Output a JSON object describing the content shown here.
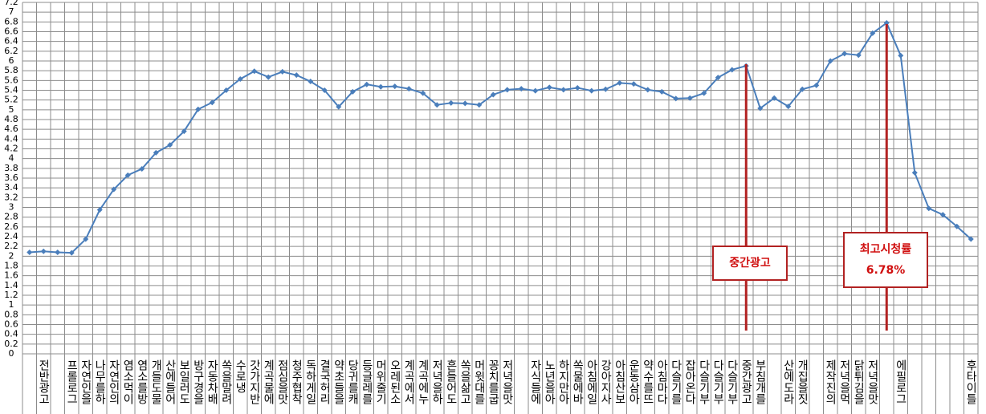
{
  "chart_data": {
    "type": "line",
    "categories": [
      null,
      "전반광고",
      null,
      "프롤로그",
      "자연인을",
      "나무를하",
      "자연인의",
      "염소먹이",
      "염소를방",
      "개들도물",
      "산에들어",
      "보일러도",
      "방구경을",
      "자동차배",
      "쏙을말려",
      "수로냉",
      "갓가지반",
      "계곡물에",
      "점심을맛",
      "청주협착",
      "독하게일",
      "결국허리",
      "약초들을",
      "당귀를캐",
      "등글레를",
      "머위줄기",
      "오레된소",
      "계곡에서",
      "계곡에누",
      "저녁을하",
      "흔들어도",
      "쏙을삶고",
      "머윗대를",
      "꽁치를굽",
      "저녁을맛",
      null,
      "자식들에",
      "노년을아",
      "하지만아",
      "쏙물에바",
      "아침에일",
      "강아지사",
      "아침산보",
      "운동삼아",
      "약수를뜨",
      "아침마다",
      "다슬기를",
      "잡아온다",
      "다슬기부",
      "다슬기부",
      "다슬기부",
      "중간광고",
      "부침개를",
      null,
      "산에도라",
      "개집을짓",
      null,
      "제작진의",
      "저녁을먹",
      "닭튀김을",
      "저녁을맛",
      null,
      "에필로그",
      null,
      null,
      null,
      null,
      "후타이틀"
    ],
    "series": [
      {
        "color": "#4a7ebb",
        "values": [
          2.08,
          2.1,
          2.08,
          2.07,
          2.35,
          2.95,
          3.37,
          3.66,
          3.79,
          4.12,
          4.28,
          4.56,
          5.01,
          5.15,
          5.4,
          5.63,
          5.79,
          5.67,
          5.78,
          5.71,
          5.58,
          5.4,
          5.06,
          5.37,
          5.52,
          5.47,
          5.48,
          5.43,
          5.34,
          5.1,
          5.14,
          5.13,
          5.1,
          5.31,
          5.41,
          5.43,
          5.39,
          5.46,
          5.41,
          5.45,
          5.39,
          5.42,
          5.55,
          5.53,
          5.41,
          5.37,
          5.23,
          5.24,
          5.34,
          5.66,
          5.82,
          5.9,
          5.03,
          5.24,
          5.07,
          5.42,
          5.5,
          6.0,
          6.15,
          6.12,
          6.57,
          6.78,
          6.11,
          3.71,
          2.98,
          2.85,
          2.61,
          2.35
        ]
      }
    ],
    "ylim": [
      0,
      7.2
    ],
    "yticks": [
      0,
      0.2,
      0.4,
      0.6,
      0.8,
      1,
      1.2,
      1.4,
      1.6,
      1.8,
      2,
      2.2,
      2.4,
      2.6,
      2.8,
      3,
      3.2,
      3.4,
      3.6,
      3.8,
      4,
      4.2,
      4.4,
      4.6,
      4.8,
      5,
      5.2,
      5.4,
      5.6,
      5.8,
      6,
      6.2,
      6.4,
      6.6,
      6.8,
      7,
      7.2
    ],
    "grid": true,
    "annotations": [
      {
        "lines": [
          "중간광고"
        ]
      },
      {
        "lines": [
          "최고시청률",
          "6.78%"
        ]
      }
    ]
  }
}
